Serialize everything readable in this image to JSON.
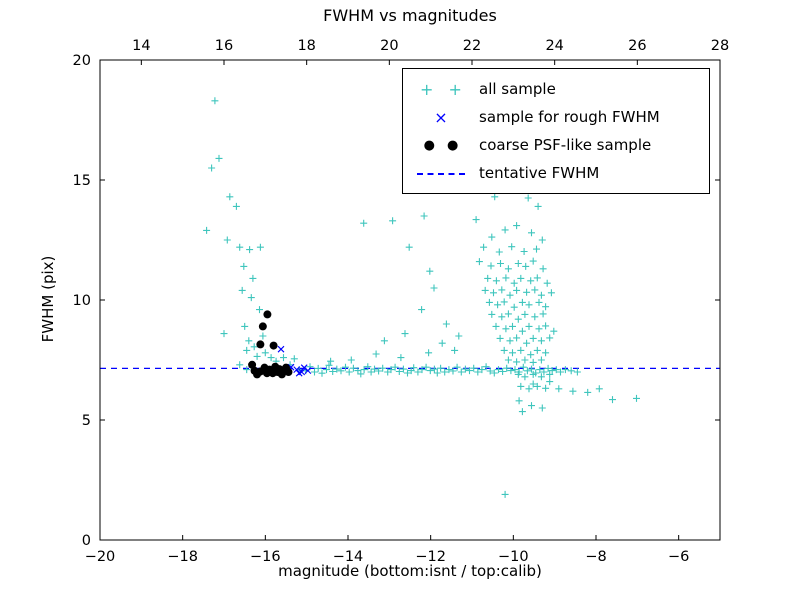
{
  "legend": {
    "entries": [
      {
        "label": "all sample",
        "marker": "plus",
        "color": "#3fc5bd"
      },
      {
        "label": "sample for rough FWHM",
        "marker": "x",
        "color": "#0000ff"
      },
      {
        "label": "coarse PSF-like sample",
        "marker": "dot",
        "color": "#000000"
      },
      {
        "label": "tentative FWHM",
        "marker": "dashed-line",
        "color": "#0000ff"
      }
    ]
  },
  "chart_data": {
    "type": "scatter",
    "title": "FWHM vs magnitudes",
    "xlabel": "magnitude (bottom:isnt / top:calib)",
    "ylabel": "FWHM (pix)",
    "xlim": [
      -20,
      -5
    ],
    "ylim": [
      0,
      20
    ],
    "xticks": [
      -20,
      -18,
      -16,
      -14,
      -12,
      -10,
      -8,
      -6
    ],
    "yticks": [
      0,
      5,
      10,
      15,
      20
    ],
    "top_axis": {
      "lim": [
        13,
        28
      ],
      "ticks": [
        14,
        16,
        18,
        20,
        22,
        24,
        26,
        28
      ]
    },
    "tentative_fwhm": 7.15,
    "grid": false,
    "legend_position": "upper right",
    "series": [
      {
        "name": "all sample",
        "marker": "+",
        "color": "#3fc5bd",
        "points": [
          [
            -17.22,
            18.3
          ],
          [
            -17.3,
            15.5
          ],
          [
            -17.12,
            15.9
          ],
          [
            -16.86,
            14.3
          ],
          [
            -16.7,
            13.9
          ],
          [
            -17.42,
            12.9
          ],
          [
            -16.92,
            12.5
          ],
          [
            -16.62,
            12.2
          ],
          [
            -16.38,
            12.1
          ],
          [
            -16.12,
            12.2
          ],
          [
            -16.52,
            11.4
          ],
          [
            -16.3,
            10.9
          ],
          [
            -16.56,
            10.4
          ],
          [
            -16.34,
            10.1
          ],
          [
            -16.14,
            9.6
          ],
          [
            -17.0,
            8.6
          ],
          [
            -16.5,
            8.9
          ],
          [
            -16.4,
            8.3
          ],
          [
            -16.27,
            8.05
          ],
          [
            -16.06,
            8.5
          ],
          [
            -16.45,
            7.9
          ],
          [
            -16.2,
            7.65
          ],
          [
            -16.0,
            7.8
          ],
          [
            -15.86,
            7.6
          ],
          [
            -16.62,
            7.3
          ],
          [
            -16.45,
            7.1
          ],
          [
            -15.74,
            7.45
          ],
          [
            -15.56,
            7.6
          ],
          [
            -15.4,
            7.3
          ],
          [
            -15.3,
            7.55
          ],
          [
            -15.18,
            7.1
          ],
          [
            -15.02,
            7.05
          ],
          [
            -14.92,
            7.22
          ],
          [
            -14.81,
            7.0
          ],
          [
            -14.72,
            7.15
          ],
          [
            -14.63,
            6.95
          ],
          [
            -14.52,
            7.1
          ],
          [
            -14.46,
            7.28
          ],
          [
            -14.37,
            7.02
          ],
          [
            -14.27,
            7.12
          ],
          [
            -14.17,
            7.05
          ],
          [
            -14.06,
            7.2
          ],
          [
            -13.97,
            7.0
          ],
          [
            -13.87,
            7.16
          ],
          [
            -13.76,
            7.06
          ],
          [
            -13.69,
            6.92
          ],
          [
            -13.61,
            7.1
          ],
          [
            -13.52,
            7.22
          ],
          [
            -13.44,
            7.0
          ],
          [
            -13.36,
            7.12
          ],
          [
            -13.26,
            7.04
          ],
          [
            -13.16,
            7.16
          ],
          [
            -13.04,
            7.0
          ],
          [
            -12.96,
            7.1
          ],
          [
            -12.86,
            7.2
          ],
          [
            -12.76,
            7.02
          ],
          [
            -12.66,
            7.12
          ],
          [
            -12.56,
            6.96
          ],
          [
            -12.47,
            7.06
          ],
          [
            -12.41,
            7.18
          ],
          [
            -12.31,
            7.0
          ],
          [
            -12.21,
            7.1
          ],
          [
            -12.11,
            7.2
          ],
          [
            -12.01,
            7.06
          ],
          [
            -11.91,
            7.12
          ],
          [
            -11.84,
            6.96
          ],
          [
            -11.76,
            7.16
          ],
          [
            -11.66,
            7.0
          ],
          [
            -11.56,
            7.1
          ],
          [
            -11.46,
            7.04
          ],
          [
            -11.36,
            7.2
          ],
          [
            -11.26,
            7.0
          ],
          [
            -11.16,
            7.12
          ],
          [
            -11.06,
            7.06
          ],
          [
            -10.96,
            7.16
          ],
          [
            -10.86,
            7.0
          ],
          [
            -10.76,
            7.1
          ],
          [
            -10.66,
            7.22
          ],
          [
            -10.56,
            7.04
          ],
          [
            -10.46,
            6.96
          ],
          [
            -10.36,
            7.1
          ],
          [
            -10.26,
            7.02
          ],
          [
            -10.16,
            7.16
          ],
          [
            -10.06,
            7.06
          ],
          [
            -9.96,
            7.1
          ],
          [
            -9.86,
            7.0
          ],
          [
            -9.76,
            7.2
          ],
          [
            -9.66,
            7.05
          ],
          [
            -9.56,
            7.12
          ],
          [
            -9.46,
            6.96
          ],
          [
            -9.36,
            7.1
          ],
          [
            -9.26,
            7.0
          ],
          [
            -9.16,
            7.15
          ],
          [
            -9.06,
            7.06
          ],
          [
            -8.96,
            7.1
          ],
          [
            -8.86,
            7.0
          ],
          [
            -8.74,
            7.1
          ],
          [
            -8.6,
            7.05
          ],
          [
            -8.45,
            7.0
          ],
          [
            -14.42,
            7.45
          ],
          [
            -13.92,
            7.5
          ],
          [
            -13.32,
            7.75
          ],
          [
            -12.72,
            7.6
          ],
          [
            -12.05,
            7.8
          ],
          [
            -11.42,
            7.9
          ],
          [
            -9.52,
            6.5
          ],
          [
            -9.12,
            6.6
          ],
          [
            -8.9,
            6.3
          ],
          [
            -8.56,
            6.2
          ],
          [
            -8.2,
            6.15
          ],
          [
            -7.92,
            6.3
          ],
          [
            -7.6,
            5.85
          ],
          [
            -7.02,
            5.9
          ],
          [
            -13.62,
            13.2
          ],
          [
            -12.92,
            13.3
          ],
          [
            -12.16,
            13.5
          ],
          [
            -12.52,
            12.2
          ],
          [
            -12.02,
            11.2
          ],
          [
            -11.92,
            10.5
          ],
          [
            -12.22,
            9.6
          ],
          [
            -11.62,
            9.0
          ],
          [
            -12.62,
            8.6
          ],
          [
            -13.12,
            8.3
          ],
          [
            -11.32,
            8.5
          ],
          [
            -11.72,
            8.2
          ],
          [
            -10.45,
            14.3
          ],
          [
            -9.64,
            14.25
          ],
          [
            -9.4,
            13.9
          ],
          [
            -10.9,
            13.35
          ],
          [
            -10.52,
            12.62
          ],
          [
            -10.2,
            12.92
          ],
          [
            -9.92,
            13.1
          ],
          [
            -9.56,
            12.8
          ],
          [
            -9.3,
            12.5
          ],
          [
            -10.72,
            12.2
          ],
          [
            -10.34,
            12.0
          ],
          [
            -10.04,
            12.22
          ],
          [
            -9.74,
            12.02
          ],
          [
            -9.44,
            12.12
          ],
          [
            -10.82,
            11.6
          ],
          [
            -10.54,
            11.42
          ],
          [
            -10.31,
            11.52
          ],
          [
            -10.12,
            11.3
          ],
          [
            -9.88,
            11.52
          ],
          [
            -9.7,
            11.4
          ],
          [
            -9.52,
            11.62
          ],
          [
            -9.28,
            11.3
          ],
          [
            -10.62,
            10.9
          ],
          [
            -10.41,
            10.8
          ],
          [
            -10.18,
            10.92
          ],
          [
            -9.98,
            10.7
          ],
          [
            -9.82,
            10.9
          ],
          [
            -9.58,
            10.8
          ],
          [
            -9.42,
            10.92
          ],
          [
            -9.18,
            10.7
          ],
          [
            -10.68,
            10.4
          ],
          [
            -10.48,
            10.3
          ],
          [
            -10.28,
            10.42
          ],
          [
            -10.08,
            10.2
          ],
          [
            -9.92,
            10.4
          ],
          [
            -9.68,
            10.32
          ],
          [
            -9.48,
            10.42
          ],
          [
            -9.32,
            10.2
          ],
          [
            -9.08,
            10.3
          ],
          [
            -10.58,
            9.9
          ],
          [
            -10.38,
            9.8
          ],
          [
            -10.22,
            9.92
          ],
          [
            -9.98,
            9.7
          ],
          [
            -9.78,
            9.9
          ],
          [
            -9.62,
            9.8
          ],
          [
            -9.38,
            9.9
          ],
          [
            -9.22,
            9.72
          ],
          [
            -10.52,
            9.4
          ],
          [
            -10.28,
            9.3
          ],
          [
            -10.12,
            9.42
          ],
          [
            -9.88,
            9.2
          ],
          [
            -9.72,
            9.4
          ],
          [
            -9.48,
            9.3
          ],
          [
            -9.28,
            9.42
          ],
          [
            -10.42,
            8.9
          ],
          [
            -10.18,
            8.8
          ],
          [
            -10.02,
            8.9
          ],
          [
            -9.78,
            8.7
          ],
          [
            -9.62,
            8.9
          ],
          [
            -9.38,
            8.8
          ],
          [
            -9.22,
            8.92
          ],
          [
            -9.02,
            8.7
          ],
          [
            -10.32,
            8.4
          ],
          [
            -10.08,
            8.3
          ],
          [
            -9.92,
            8.42
          ],
          [
            -9.68,
            8.2
          ],
          [
            -9.52,
            8.4
          ],
          [
            -9.32,
            8.3
          ],
          [
            -9.12,
            8.42
          ],
          [
            -10.22,
            7.9
          ],
          [
            -10.02,
            7.8
          ],
          [
            -9.82,
            7.9
          ],
          [
            -9.58,
            7.72
          ],
          [
            -9.42,
            7.9
          ],
          [
            -9.22,
            7.8
          ],
          [
            -10.12,
            7.5
          ],
          [
            -9.92,
            7.42
          ],
          [
            -9.72,
            7.5
          ],
          [
            -9.52,
            7.4
          ],
          [
            -9.32,
            7.5
          ],
          [
            -9.88,
            6.9
          ],
          [
            -9.72,
            6.8
          ],
          [
            -9.52,
            6.9
          ],
          [
            -9.32,
            6.8
          ],
          [
            -9.12,
            6.9
          ],
          [
            -9.82,
            6.4
          ],
          [
            -9.62,
            6.3
          ],
          [
            -9.42,
            6.4
          ],
          [
            -9.22,
            6.32
          ],
          [
            -9.86,
            5.8
          ],
          [
            -9.56,
            5.6
          ],
          [
            -9.78,
            5.35
          ],
          [
            -9.3,
            5.5
          ],
          [
            -10.2,
            1.9
          ]
        ]
      },
      {
        "name": "sample for rough FWHM",
        "marker": "x",
        "color": "#0000ff",
        "points": [
          [
            -15.62,
            7.95
          ],
          [
            -15.38,
            7.2
          ],
          [
            -15.24,
            7.1
          ],
          [
            -15.12,
            7.0
          ],
          [
            -15.06,
            7.18
          ],
          [
            -14.97,
            7.06
          ],
          [
            -15.18,
            6.95
          ]
        ]
      },
      {
        "name": "coarse PSF-like sample",
        "marker": "circle",
        "color": "#000000",
        "points": [
          [
            -15.95,
            9.4
          ],
          [
            -16.06,
            8.9
          ],
          [
            -16.12,
            8.15
          ],
          [
            -15.8,
            8.1
          ],
          [
            -16.32,
            7.3
          ],
          [
            -16.26,
            7.05
          ],
          [
            -16.2,
            6.9
          ],
          [
            -16.12,
            7.02
          ],
          [
            -16.02,
            7.18
          ],
          [
            -15.96,
            6.95
          ],
          [
            -15.9,
            7.1
          ],
          [
            -15.82,
            6.95
          ],
          [
            -15.76,
            7.22
          ],
          [
            -15.7,
            7.0
          ],
          [
            -15.66,
            7.12
          ],
          [
            -15.6,
            6.9
          ],
          [
            -15.55,
            7.05
          ],
          [
            -15.5,
            7.18
          ],
          [
            -15.44,
            7.0
          ]
        ]
      }
    ]
  }
}
